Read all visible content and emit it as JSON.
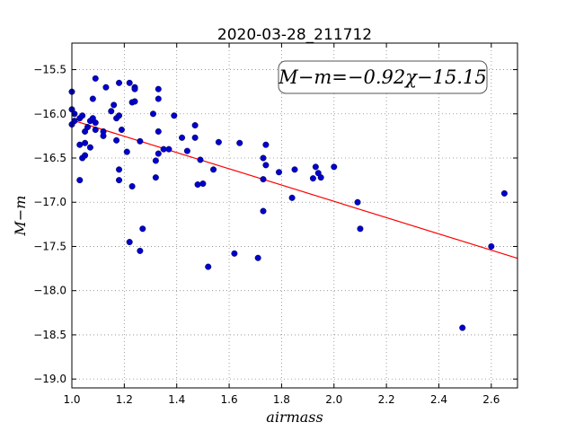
{
  "chart_data": {
    "type": "scatter",
    "title": "2020-03-28_211712",
    "xlabel": "airmass",
    "ylabel": "M−m",
    "xlim": [
      1.0,
      2.7
    ],
    "ylim": [
      -19.1,
      -15.2
    ],
    "x_ticks": [
      1.0,
      1.2,
      1.4,
      1.6,
      1.8,
      2.0,
      2.2,
      2.4,
      2.6
    ],
    "x_tick_labels": [
      "1.0",
      "1.2",
      "1.4",
      "1.6",
      "1.8",
      "2.0",
      "2.2",
      "2.4",
      "2.6"
    ],
    "y_ticks": [
      -15.5,
      -16.0,
      -16.5,
      -17.0,
      -17.5,
      -18.0,
      -18.5,
      -19.0
    ],
    "y_tick_labels": [
      "−15.5",
      "−16.0",
      "−16.5",
      "−17.0",
      "−17.5",
      "−18.0",
      "−18.5",
      "−19.0"
    ],
    "grid": true,
    "annotation": "M−m=−0.92χ−15.15",
    "fit_line": {
      "slope": -0.92,
      "intercept": -15.15,
      "color": "#ff0000"
    },
    "point_color": "#0000cc",
    "points": [
      [
        1.0,
        -15.75
      ],
      [
        1.0,
        -15.95
      ],
      [
        1.01,
        -16.0
      ],
      [
        1.01,
        -16.08
      ],
      [
        1.0,
        -16.12
      ],
      [
        1.03,
        -16.05
      ],
      [
        1.04,
        -16.02
      ],
      [
        1.05,
        -16.2
      ],
      [
        1.06,
        -16.15
      ],
      [
        1.07,
        -16.08
      ],
      [
        1.08,
        -16.05
      ],
      [
        1.09,
        -15.6
      ],
      [
        1.08,
        -15.83
      ],
      [
        1.09,
        -16.1
      ],
      [
        1.09,
        -16.18
      ],
      [
        1.12,
        -16.2
      ],
      [
        1.12,
        -16.25
      ],
      [
        1.13,
        -15.7
      ],
      [
        1.15,
        -15.97
      ],
      [
        1.16,
        -15.9
      ],
      [
        1.17,
        -16.05
      ],
      [
        1.18,
        -16.02
      ],
      [
        1.18,
        -15.65
      ],
      [
        1.17,
        -16.3
      ],
      [
        1.19,
        -16.18
      ],
      [
        1.03,
        -16.35
      ],
      [
        1.04,
        -16.5
      ],
      [
        1.05,
        -16.33
      ],
      [
        1.05,
        -16.47
      ],
      [
        1.07,
        -16.38
      ],
      [
        1.03,
        -16.75
      ],
      [
        1.18,
        -16.63
      ],
      [
        1.18,
        -16.75
      ],
      [
        1.21,
        -16.43
      ],
      [
        1.22,
        -15.65
      ],
      [
        1.23,
        -15.87
      ],
      [
        1.24,
        -15.7
      ],
      [
        1.24,
        -15.72
      ],
      [
        1.24,
        -15.86
      ],
      [
        1.26,
        -16.31
      ],
      [
        1.23,
        -16.82
      ],
      [
        1.22,
        -17.45
      ],
      [
        1.26,
        -17.55
      ],
      [
        1.27,
        -17.3
      ],
      [
        1.31,
        -16.0
      ],
      [
        1.33,
        -15.72
      ],
      [
        1.33,
        -15.83
      ],
      [
        1.33,
        -16.2
      ],
      [
        1.33,
        -16.45
      ],
      [
        1.32,
        -16.53
      ],
      [
        1.32,
        -16.72
      ],
      [
        1.35,
        -16.4
      ],
      [
        1.37,
        -16.4
      ],
      [
        1.39,
        -16.02
      ],
      [
        1.42,
        -16.27
      ],
      [
        1.44,
        -16.42
      ],
      [
        1.47,
        -16.27
      ],
      [
        1.47,
        -16.13
      ],
      [
        1.48,
        -16.8
      ],
      [
        1.49,
        -16.52
      ],
      [
        1.5,
        -16.79
      ],
      [
        1.52,
        -17.73
      ],
      [
        1.54,
        -16.63
      ],
      [
        1.56,
        -16.32
      ],
      [
        1.62,
        -17.58
      ],
      [
        1.64,
        -16.33
      ],
      [
        1.71,
        -17.63
      ],
      [
        1.73,
        -17.1
      ],
      [
        1.73,
        -16.5
      ],
      [
        1.74,
        -16.35
      ],
      [
        1.74,
        -16.58
      ],
      [
        1.73,
        -16.74
      ],
      [
        1.79,
        -16.66
      ],
      [
        1.84,
        -16.95
      ],
      [
        1.85,
        -16.63
      ],
      [
        1.92,
        -16.73
      ],
      [
        1.93,
        -16.6
      ],
      [
        1.94,
        -16.67
      ],
      [
        1.95,
        -16.72
      ],
      [
        2.0,
        -16.6
      ],
      [
        2.09,
        -17.0
      ],
      [
        2.1,
        -17.3
      ],
      [
        2.49,
        -18.42
      ],
      [
        2.6,
        -17.5
      ],
      [
        2.65,
        -16.9
      ]
    ]
  }
}
